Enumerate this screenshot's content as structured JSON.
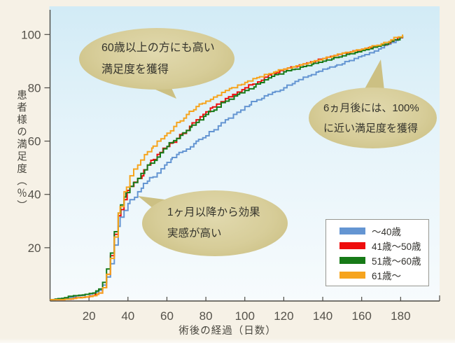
{
  "chart_data": {
    "type": "line",
    "line_style": "step",
    "title": "",
    "xlabel": "術後の経過（日数）",
    "ylabel": "患者様の満足度（％）",
    "xlim": [
      0,
      190
    ],
    "ylim": [
      0,
      100
    ],
    "grid": false,
    "legend_position": "bottom-right",
    "x_ticks": [
      20,
      40,
      60,
      80,
      100,
      120,
      140,
      160,
      180
    ],
    "y_ticks": [
      20,
      40,
      60,
      80,
      100
    ],
    "x": [
      0,
      6,
      12,
      18,
      22,
      25,
      27,
      29,
      31,
      33,
      35,
      38,
      41,
      45,
      50,
      55,
      60,
      65,
      70,
      75,
      80,
      90,
      100,
      110,
      120,
      130,
      140,
      150,
      160,
      170,
      175,
      181
    ],
    "series": [
      {
        "name": "～40歳",
        "color": "#6495d2",
        "values": [
          0.5,
          1,
          1.5,
          2.5,
          3,
          4,
          6,
          9,
          14,
          21,
          28,
          34,
          38,
          41,
          45,
          48,
          52,
          55,
          57,
          60,
          62,
          68,
          73,
          77,
          80,
          84,
          87,
          89,
          92,
          95,
          97,
          99.5
        ]
      },
      {
        "name": "41歳～50歳",
        "color": "#ee0d0d",
        "values": [
          0.5,
          0.5,
          1,
          1.5,
          2,
          3,
          5,
          10,
          17,
          25,
          32,
          38,
          43,
          46,
          51,
          55,
          58,
          61,
          64,
          68,
          71,
          76,
          80,
          84,
          87,
          89,
          91,
          93,
          94.5,
          96,
          97.5,
          99.5
        ]
      },
      {
        "name": "51歳～60歳",
        "color": "#177a17",
        "values": [
          0.5,
          1,
          2,
          2.5,
          3,
          4.5,
          7,
          12,
          18,
          26,
          33,
          39,
          43,
          46,
          51,
          54,
          58,
          61,
          64,
          67,
          70,
          75,
          79,
          83,
          86,
          88,
          90,
          92,
          94,
          96,
          97.5,
          99.5
        ]
      },
      {
        "name": "61歳～",
        "color": "#f6a41d",
        "values": [
          0.5,
          0.5,
          1,
          1.5,
          2,
          3,
          5,
          10,
          16,
          24,
          33,
          41,
          47,
          51,
          56,
          60,
          63,
          67,
          70,
          73,
          75,
          79,
          82,
          85,
          87,
          89,
          91,
          93,
          94.5,
          96.5,
          98,
          100
        ]
      }
    ]
  },
  "annotations": {
    "seniors": {
      "line1": "60歳以上の方にも高い",
      "line2": "満足度を獲得"
    },
    "six_months": {
      "line1": "6ヵ月後には、100%",
      "line2": "に近い満足度を獲得"
    },
    "one_month": {
      "line1": "1ヶ月以降から効果",
      "line2": "実感が高い"
    }
  },
  "colors": {
    "page_background": "#f6f1e6",
    "plot_top": "#d2ebf6",
    "plot_bottom": "#f7fbfd",
    "axis": "#4d4b45",
    "bubble_fill": "#d4ca93",
    "legend_border": "#979791"
  }
}
